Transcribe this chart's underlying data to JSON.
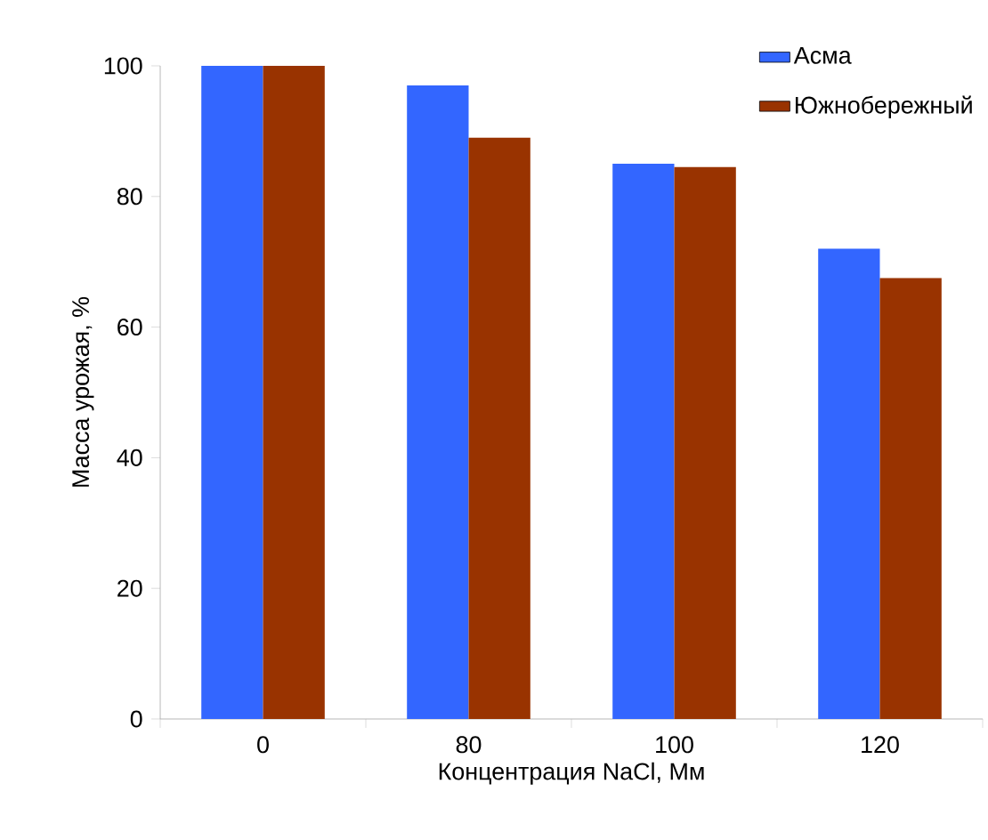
{
  "chart_data": {
    "type": "bar",
    "xlabel": "Концентрация NaCl, Мм",
    "ylabel": "Масса урожая, %",
    "categories": [
      "0",
      "80",
      "100",
      "120"
    ],
    "series": [
      {
        "name": "Асма",
        "color": "#3366ff",
        "values": [
          100,
          97,
          85,
          72
        ]
      },
      {
        "name": "Южнобережный",
        "color": "#993300",
        "values": [
          100,
          89,
          84.5,
          67.5
        ]
      }
    ],
    "ylim": [
      0,
      100
    ],
    "yticks": [
      0,
      20,
      40,
      60,
      80,
      100
    ],
    "legend": "top right"
  }
}
